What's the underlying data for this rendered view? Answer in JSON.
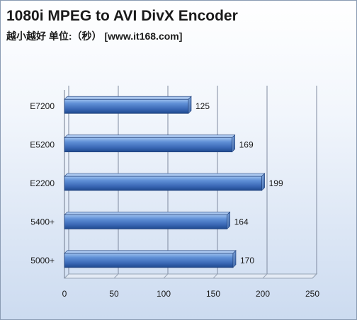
{
  "chart_data": {
    "type": "bar",
    "orientation": "horizontal",
    "title": "1080i MPEG to AVI DivX Encoder",
    "subtitle": "越小越好 单位:（秒） [www.it168.com]",
    "categories": [
      "E7200",
      "E5200",
      "E2200",
      "5400+",
      "5000+"
    ],
    "values": [
      125,
      169,
      199,
      164,
      170
    ],
    "xlim": [
      0,
      250
    ],
    "xticks": [
      0,
      50,
      100,
      150,
      200,
      250
    ],
    "grid": "vertical",
    "legend": "none",
    "bar_color": "#3f6fbf"
  }
}
